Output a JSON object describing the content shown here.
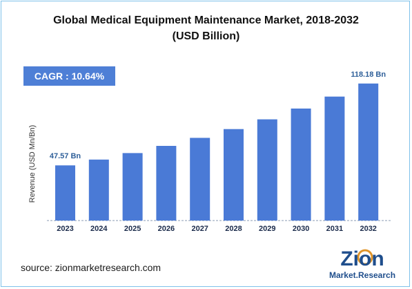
{
  "title_line1": "Global Medical Equipment Maintenance Market, 2018-2032",
  "title_line2": "(USD Billion)",
  "cagr_label": "CAGR : 10.64%",
  "source": "source: zionmarketresearch.com",
  "logo": {
    "word": "Zion",
    "sub": "Market.Research",
    "icon": "zion-logo"
  },
  "colors": {
    "bar": "#4a7ad6",
    "cagr_bg": "#4e7fd6",
    "label": "#2e5f99",
    "frame": "#7ec1ea"
  },
  "chart_data": {
    "type": "bar",
    "categories": [
      "2023",
      "2024",
      "2025",
      "2026",
      "2027",
      "2028",
      "2029",
      "2030",
      "2031",
      "2032"
    ],
    "values": [
      47.57,
      52.6,
      58.2,
      64.4,
      71.3,
      78.9,
      87.3,
      96.6,
      106.9,
      118.18
    ],
    "data_labels": [
      {
        "index": 0,
        "text": "47.57 Bn"
      },
      {
        "index": 9,
        "text": "118.18 Bn"
      }
    ],
    "title": "Global Medical Equipment Maintenance Market, 2018-2032 (USD Billion)",
    "xlabel": "",
    "ylabel": "Revenue (USD Mn/Bn)",
    "ylim": [
      0,
      130
    ],
    "grid": false,
    "legend": "none"
  }
}
